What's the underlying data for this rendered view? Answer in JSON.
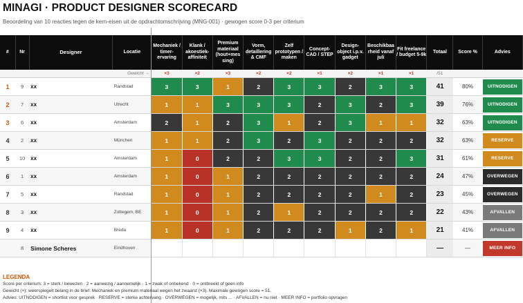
{
  "header": {
    "title": "MINAGI  ·  PRODUCT DESIGNER SCORECARD",
    "subtitle": "Beoordeling van 10 reacties tegen de kern-eisen uit de opdrachtomschrijving (MNG-001) · gewogen score 0-3 per criterium"
  },
  "columns": {
    "rank": "#",
    "nr": "Nr",
    "designer": "Designer",
    "locatie": "Locatie",
    "criteria": [
      "Mechaniek / timer-ervaring",
      "Klank / akoestiek-affiniteit",
      "Premium materiaal (hout+mes sing)",
      "Vorm, detaillering & CMF",
      "Zelf prototypen / maken",
      "Concept-CAD / STEP",
      "Design-object i.p.v. gadget",
      "Beschikbaa rheid vanaf juli",
      "Fit freelance / budget 5-9k"
    ],
    "totaal": "Totaal",
    "score_pct": "Score %",
    "advies": "Advies"
  },
  "weights": {
    "label": "Gewicht →",
    "values": [
      "×3",
      "×2",
      "×3",
      "×2",
      "×2",
      "×1",
      "×2",
      "×1",
      "×1"
    ],
    "total": "/51"
  },
  "rows": [
    {
      "rank": "1",
      "nr": "9",
      "name": "xx",
      "loc": "Randstad",
      "scores": [
        "3",
        "3",
        "1",
        "2",
        "3",
        "3",
        "2",
        "3",
        "3"
      ],
      "total": "41",
      "pct": "80%",
      "advice": "UITNODIGEN",
      "advice_class": "adv-inv"
    },
    {
      "rank": "2",
      "nr": "7",
      "name": "xx",
      "loc": "Utrecht",
      "scores": [
        "1",
        "1",
        "3",
        "3",
        "3",
        "2",
        "3",
        "2",
        "3"
      ],
      "total": "39",
      "pct": "76%",
      "advice": "UITNODIGEN",
      "advice_class": "adv-inv"
    },
    {
      "rank": "3",
      "nr": "6",
      "name": "xx",
      "loc": "Amsterdam",
      "scores": [
        "2",
        "1",
        "2",
        "3",
        "1",
        "2",
        "3",
        "1",
        "1"
      ],
      "total": "32",
      "pct": "63%",
      "advice": "UITNODIGEN",
      "advice_class": "adv-inv"
    },
    {
      "rank": "4",
      "nr": "2",
      "name": "xx",
      "loc": "München",
      "scores": [
        "1",
        "1",
        "2",
        "3",
        "2",
        "3",
        "2",
        "2",
        "2"
      ],
      "total": "32",
      "pct": "63%",
      "advice": "RESERVE",
      "advice_class": "adv-res"
    },
    {
      "rank": "5",
      "nr": "10",
      "name": "xx",
      "loc": "Amsterdam",
      "scores": [
        "1",
        "0",
        "2",
        "2",
        "3",
        "3",
        "2",
        "2",
        "3"
      ],
      "total": "31",
      "pct": "61%",
      "advice": "RESERVE",
      "advice_class": "adv-res"
    },
    {
      "rank": "6",
      "nr": "1",
      "name": "xx",
      "loc": "Amsterdam",
      "scores": [
        "1",
        "0",
        "1",
        "2",
        "2",
        "2",
        "2",
        "2",
        "2"
      ],
      "total": "24",
      "pct": "47%",
      "advice": "OVERWEGEN",
      "advice_class": "adv-ovw"
    },
    {
      "rank": "7",
      "nr": "5",
      "name": "xx",
      "loc": "Randstad",
      "scores": [
        "1",
        "0",
        "1",
        "2",
        "2",
        "2",
        "2",
        "1",
        "2"
      ],
      "total": "23",
      "pct": "45%",
      "advice": "OVERWEGEN",
      "advice_class": "adv-ovw"
    },
    {
      "rank": "8",
      "nr": "3",
      "name": "xx",
      "loc": "Zottegem, BE",
      "scores": [
        "1",
        "0",
        "1",
        "2",
        "1",
        "2",
        "2",
        "2",
        "2"
      ],
      "total": "22",
      "pct": "43%",
      "advice": "AFVALLEN",
      "advice_class": "adv-afv"
    },
    {
      "rank": "9",
      "nr": "4",
      "name": "xx",
      "loc": "Breda",
      "scores": [
        "1",
        "0",
        "1",
        "2",
        "2",
        "2",
        "1",
        "2",
        "1"
      ],
      "total": "21",
      "pct": "41%",
      "advice": "AFVALLEN",
      "advice_class": "adv-afv"
    },
    {
      "rank": "",
      "nr": "8",
      "name": "Simone Scheres",
      "loc": "Eindhoven",
      "scores": [
        "",
        "",
        "",
        "",
        "",
        "",
        "",
        "",
        ""
      ],
      "total": "—",
      "pct": "—",
      "advice": "MEER INFO",
      "advice_class": "adv-mi"
    }
  ],
  "legend": {
    "heading": "LEGENDA",
    "line1": "Score per criterium:  3 = sterk / bewezen   ·  2 = aanwezig / aannemelijk   ·  1 = zwak of onbekend   ·  0 = ontbreekt of geen info",
    "line2": "Gewicht (×):  weerspiegelt belang in de brief. Mechaniek en premium materiaal wegen het zwaarst (×3). Maximale gewogen score = 51.",
    "line3": "Advies:  UITNODIGEN = shortlist voor gesprek   ·  RESERVE = sterke achtervang   ·  OVERWEGEN = mogelijk, mits ...  ·  AFVALLEN = nu niet   ·  MEER INFO = portfolio opvragen"
  }
}
